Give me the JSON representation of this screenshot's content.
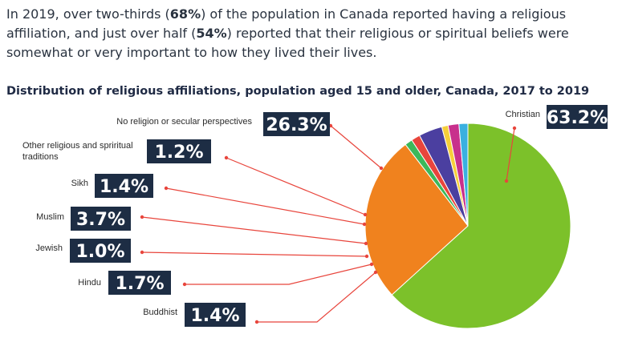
{
  "intro": {
    "part1": "In 2019, over two-thirds (",
    "stat1": "68%",
    "part2": ") of the population in Canada reported having a religious affiliation,  and just over half (",
    "stat2": "54%",
    "part3": ") reported that their religious or spiritual beliefs were somewhat or very important to how they lived their lives."
  },
  "chart_data": {
    "type": "pie",
    "title": "Distribution of religious affiliations, population aged 15 and older, Canada, 2017 to 2019",
    "slices": [
      {
        "label": "Christian",
        "value": 63.2,
        "display": "63.2%",
        "color": "#7cc12a"
      },
      {
        "label": "No religion or secular perspectives",
        "value": 26.3,
        "display": "26.3%",
        "color": "#f0821e"
      },
      {
        "label": "Other religious and spriritual traditions",
        "value": 1.2,
        "display": "1.2%",
        "color": "#3cb85a"
      },
      {
        "label": "Sikh",
        "value": 1.4,
        "display": "1.4%",
        "color": "#e8453c"
      },
      {
        "label": "Muslim",
        "value": 3.7,
        "display": "3.7%",
        "color": "#4b3fa0"
      },
      {
        "label": "Jewish",
        "value": 1.0,
        "display": "1.0%",
        "color": "#f6cf3a"
      },
      {
        "label": "Hindu",
        "value": 1.7,
        "display": "1.7%",
        "color": "#c8308c"
      },
      {
        "label": "Buddhist",
        "value": 1.4,
        "display": "1.4%",
        "color": "#3ab0e0"
      }
    ]
  },
  "colors": {
    "badge": "#1d2d44",
    "badge_text": "#ffffff",
    "leader": "#e8453c",
    "title": "#1f2a44"
  }
}
